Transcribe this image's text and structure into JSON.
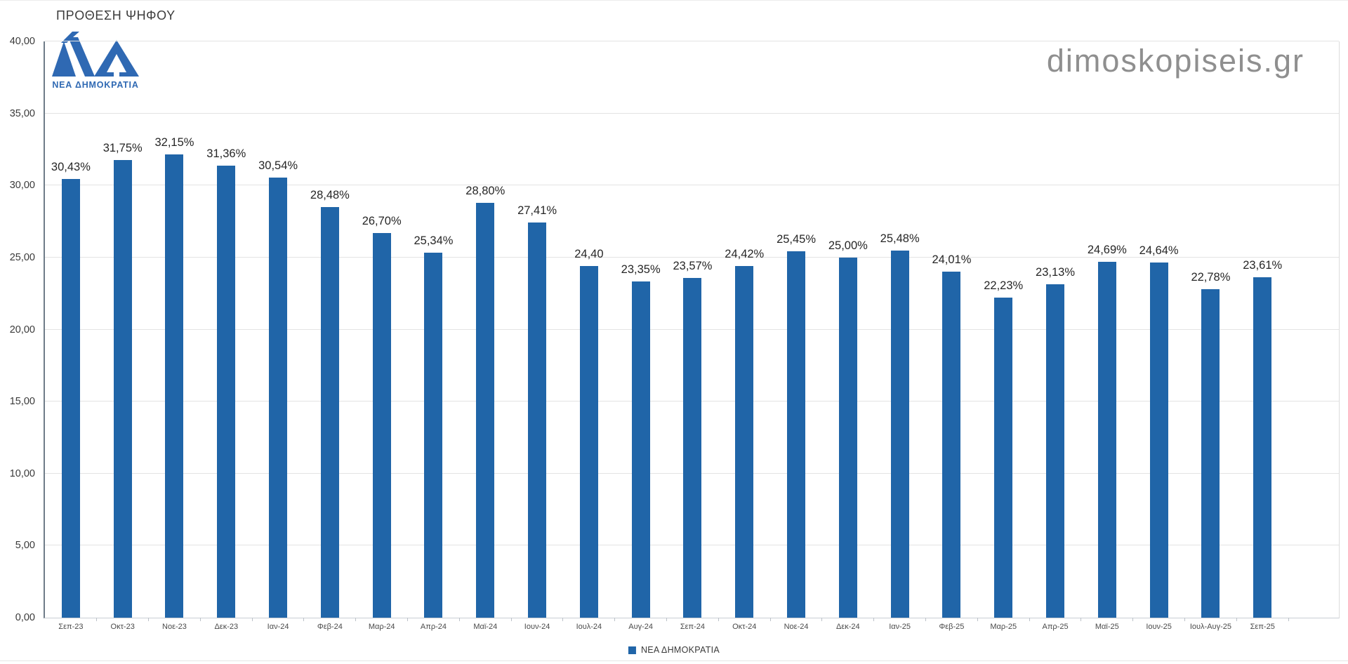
{
  "header": {
    "title": "ΠΡΟΘΕΣΗ ΨΗΦΟΥ",
    "watermark": "dimoskopiseis.gr",
    "logo_text": "ΝΕΑ ΔΗΜΟΚΡΑΤΙΑ"
  },
  "legend": {
    "label": "ΝΕΑ ΔΗΜΟΚΡΑΤΙΑ"
  },
  "colors": {
    "bar": "#2065A8",
    "logo": "#2F69B3",
    "watermark": "#8F8F8F",
    "grid": "#E3E3E3",
    "axis": "#6F7C88"
  },
  "chart_data": {
    "type": "bar",
    "title": "ΠΡΟΘΕΣΗ ΨΗΦΟΥ",
    "series_name": "ΝΕΑ ΔΗΜΟΚΡΑΤΙΑ",
    "categories": [
      "Σεπ-23",
      "Οκτ-23",
      "Νοε-23",
      "Δεκ-23",
      "Ιαν-24",
      "Φεβ-24",
      "Μαρ-24",
      "Απρ-24",
      "Μαϊ-24",
      "Ιουν-24",
      "Ιουλ-24",
      "Αυγ-24",
      "Σεπ-24",
      "Οκτ-24",
      "Νοε-24",
      "Δεκ-24",
      "Ιαν-25",
      "Φεβ-25",
      "Μαρ-25",
      "Απρ-25",
      "Μαϊ-25",
      "Ιουν-25",
      "Ιουλ-Αυγ-25",
      "Σεπ-25"
    ],
    "values": [
      30.43,
      31.75,
      32.15,
      31.36,
      30.54,
      28.48,
      26.7,
      25.34,
      28.8,
      27.41,
      24.4,
      23.35,
      23.57,
      24.42,
      25.45,
      25.0,
      25.48,
      24.01,
      22.23,
      23.13,
      24.69,
      24.64,
      22.78,
      23.61
    ],
    "value_labels": [
      "30,43%",
      "31,75%",
      "32,15%",
      "31,36%",
      "30,54%",
      "28,48%",
      "26,70%",
      "25,34%",
      "28,80%",
      "27,41%",
      "24,40",
      "23,35%",
      "23,57%",
      "24,42%",
      "25,45%",
      "25,00%",
      "25,48%",
      "24,01%",
      "22,23%",
      "23,13%",
      "24,69%",
      "24,64%",
      "22,78%",
      "23,61%"
    ],
    "ylim": [
      0,
      40
    ],
    "yticks": [
      0,
      5,
      10,
      15,
      20,
      25,
      30,
      35,
      40
    ],
    "ytick_labels": [
      "0,00",
      "5,00",
      "10,00",
      "15,00",
      "20,00",
      "25,00",
      "30,00",
      "35,00",
      "40,00"
    ],
    "grid": true,
    "legend_position": "bottom"
  }
}
